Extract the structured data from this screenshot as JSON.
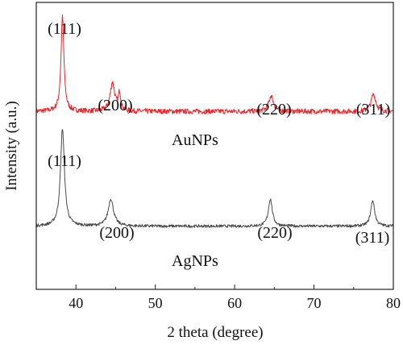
{
  "chart_data": {
    "type": "line",
    "xlabel": "2 theta (degree)",
    "ylabel": "Intensity (a.u.)",
    "xlim": [
      35,
      80
    ],
    "ylim": [
      0,
      100
    ],
    "xticks": [
      40,
      50,
      60,
      70,
      80
    ],
    "yticks_visible": false,
    "grid": false,
    "legend": "none",
    "series": [
      {
        "name": "AuNPs",
        "color": "#e8262c",
        "baseline": 62,
        "noise": 0.9,
        "peaks": [
          {
            "x": 38.3,
            "height": 33,
            "width": 0.22
          },
          {
            "x": 44.6,
            "height": 10,
            "width": 0.35
          },
          {
            "x": 45.5,
            "height": 6,
            "width": 0.18
          },
          {
            "x": 64.6,
            "height": 5.5,
            "width": 0.35
          },
          {
            "x": 77.5,
            "height": 6,
            "width": 0.35
          }
        ]
      },
      {
        "name": "AgNPs",
        "color": "#4a4a4a",
        "baseline": 22,
        "noise": 0.5,
        "peaks": [
          {
            "x": 38.3,
            "height": 34,
            "width": 0.3
          },
          {
            "x": 44.4,
            "height": 9.5,
            "width": 0.4
          },
          {
            "x": 64.5,
            "height": 9.5,
            "width": 0.3
          },
          {
            "x": 77.4,
            "height": 9,
            "width": 0.3
          }
        ]
      }
    ],
    "annotations": [
      {
        "text": "(111)",
        "series": "AuNPs"
      },
      {
        "text": "(200)",
        "series": "AuNPs"
      },
      {
        "text": "(220)",
        "series": "AuNPs"
      },
      {
        "text": "(311)",
        "series": "AuNPs"
      },
      {
        "text": "AuNPs",
        "series": "AuNPs"
      },
      {
        "text": "(111)",
        "series": "AgNPs"
      },
      {
        "text": "(200)",
        "series": "AgNPs"
      },
      {
        "text": "(220)",
        "series": "AgNPs"
      },
      {
        "text": "(311)",
        "series": "AgNPs"
      },
      {
        "text": "AgNPs",
        "series": "AgNPs"
      }
    ]
  }
}
